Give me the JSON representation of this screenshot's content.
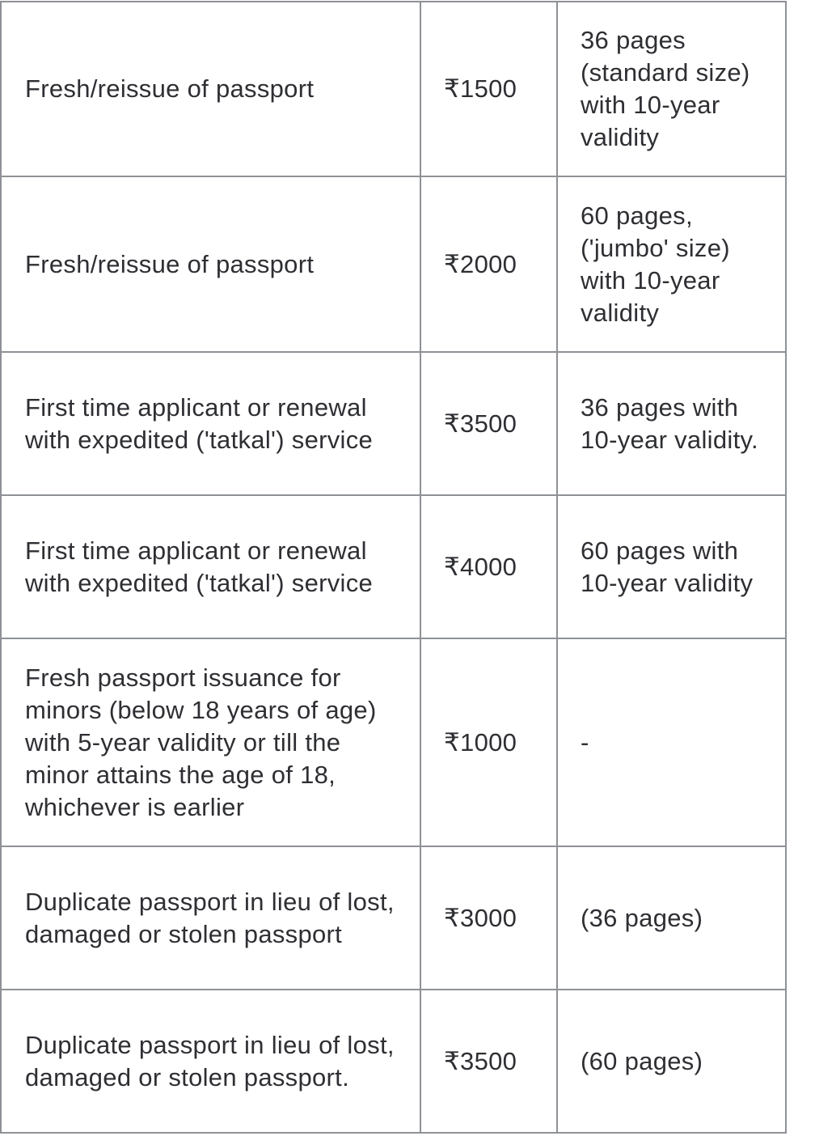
{
  "rows": [
    {
      "service": "Fresh/reissue of passport",
      "fee": "₹1500",
      "details": "36 pages (standard size) with 10-year validity"
    },
    {
      "service": "Fresh/reissue of passport",
      "fee": "₹2000",
      "details": "60 pages, ('jumbo' size) with 10-year validity"
    },
    {
      "service": "First time applicant or renewal with expedited ('tatkal') service",
      "fee": "₹3500",
      "details": "36 pages with 10-year validity."
    },
    {
      "service": "First time applicant or renewal with expedited ('tatkal') service",
      "fee": "₹4000",
      "details": "60 pages with 10-year validity"
    },
    {
      "service": "Fresh passport issuance for minors (below 18 years of age) with 5-year validity or till the minor attains the age of 18, whichever is earlier",
      "fee": "₹1000",
      "details": "-"
    },
    {
      "service": "Duplicate passport in lieu of lost, damaged or stolen passport",
      "fee": "₹3000",
      "details": "(36 pages)"
    },
    {
      "service": "Duplicate passport in lieu of lost, damaged or stolen passport.",
      "fee": "₹3500",
      "details": "(60 pages)"
    }
  ]
}
